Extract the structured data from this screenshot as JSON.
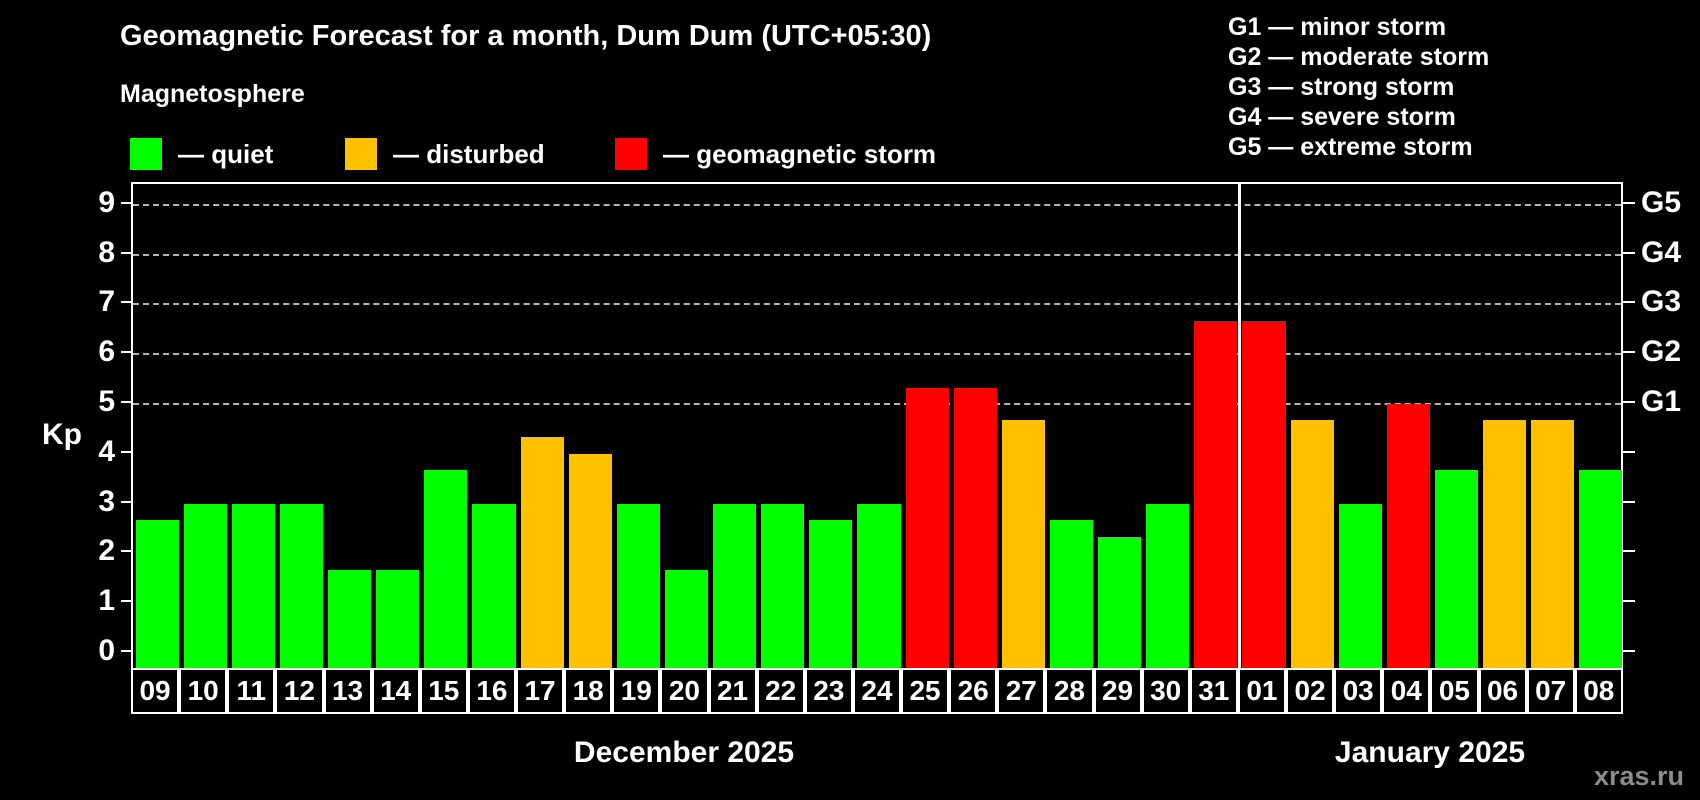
{
  "header": {
    "title": "Geomagnetic Forecast for a month, Dum Dum (UTC+05:30)",
    "subtitle": "Magnetosphere"
  },
  "legend": {
    "items": [
      {
        "name": "quiet",
        "label": "— quiet",
        "color": "#00ff00"
      },
      {
        "name": "disturbed",
        "label": "— disturbed",
        "color": "#ffc000"
      },
      {
        "name": "storm",
        "label": "— geomagnetic storm",
        "color": "#ff0000"
      }
    ]
  },
  "g_legend": {
    "lines": [
      "G1 — minor storm",
      "G2 — moderate storm",
      "G3 — strong storm",
      "G4 — severe storm",
      "G5 — extreme storm"
    ]
  },
  "chart_data": {
    "type": "bar",
    "title": "Geomagnetic Forecast for a month, Dum Dum (UTC+05:30)",
    "ylabel": "Kp",
    "ylim": [
      0,
      9
    ],
    "grid": "horizontal dashed lines at G-storm levels only",
    "legend_position": "top",
    "y_ticks": [
      "0",
      "1",
      "2",
      "3",
      "4",
      "5",
      "6",
      "7",
      "8",
      "9"
    ],
    "g_levels": [
      {
        "value": 5,
        "label": "G1"
      },
      {
        "value": 6,
        "label": "G2"
      },
      {
        "value": 7,
        "label": "G3"
      },
      {
        "value": 8,
        "label": "G4"
      },
      {
        "value": 9,
        "label": "G5"
      }
    ],
    "categories": [
      "09",
      "10",
      "11",
      "12",
      "13",
      "14",
      "15",
      "16",
      "17",
      "18",
      "19",
      "20",
      "21",
      "22",
      "23",
      "24",
      "25",
      "26",
      "27",
      "28",
      "29",
      "30",
      "31",
      "01",
      "02",
      "03",
      "04",
      "05",
      "06",
      "07",
      "08"
    ],
    "values": [
      2.67,
      3,
      3,
      3,
      1.67,
      1.67,
      3.67,
      3,
      4.33,
      4,
      3,
      1.67,
      3,
      3,
      2.67,
      3,
      5.33,
      5.33,
      4.67,
      2.67,
      2.33,
      3,
      6.67,
      6.67,
      4.67,
      3,
      5,
      3.67,
      4.67,
      4.67,
      3.67
    ],
    "statuses": [
      "quiet",
      "quiet",
      "quiet",
      "quiet",
      "quiet",
      "quiet",
      "quiet",
      "quiet",
      "disturbed",
      "disturbed",
      "quiet",
      "quiet",
      "quiet",
      "quiet",
      "quiet",
      "quiet",
      "storm",
      "storm",
      "disturbed",
      "quiet",
      "quiet",
      "quiet",
      "storm",
      "storm",
      "disturbed",
      "quiet",
      "storm",
      "quiet",
      "disturbed",
      "disturbed",
      "quiet"
    ],
    "colors": {
      "quiet": "#00ff00",
      "disturbed": "#ffc000",
      "storm": "#ff0000"
    },
    "months": [
      {
        "label": "December 2025",
        "num_days": 23
      },
      {
        "label": "January 2025",
        "num_days": 8
      }
    ]
  },
  "watermark": "xras.ru"
}
